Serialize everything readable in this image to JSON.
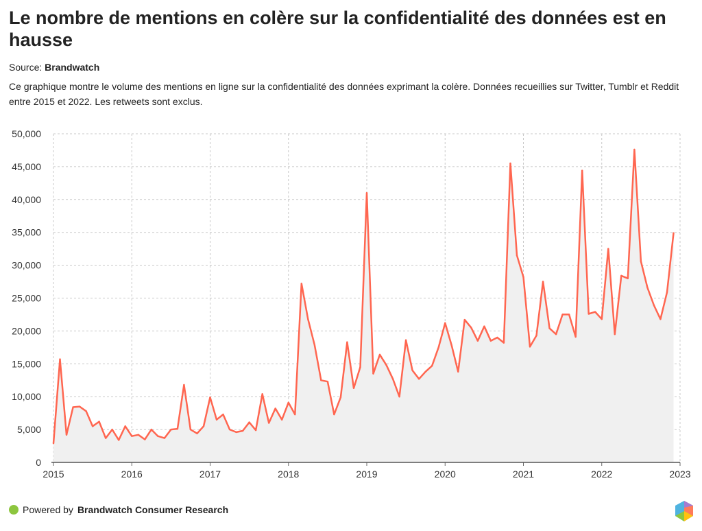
{
  "title": "Le nombre de mentions en colère sur la confidentialité des données est en hausse",
  "source_label": "Source:",
  "source_name": "Brandwatch",
  "description": "Ce graphique montre le volume des mentions en ligne sur la confidentialité des données exprimant la colère. Données recueillies sur Twitter, Tumblr et Reddit entre 2015 et 2022. Les retweets sont exclus.",
  "footer": {
    "powered_by": "Powered by",
    "brand": "Brandwatch Consumer Research"
  },
  "colors": {
    "line": "#ff6650",
    "area": "#f0f0f0",
    "grid": "#c8c8c8",
    "dot": "#8dc63f"
  },
  "chart_data": {
    "type": "area",
    "title": "Le nombre de mentions en colère sur la confidentialité des données est en hausse",
    "xlabel": "",
    "ylabel": "",
    "ylim": [
      0,
      50000
    ],
    "xlim": [
      2015,
      2023
    ],
    "grid": true,
    "y_ticks": [
      "0",
      "5,000",
      "10,000",
      "15,000",
      "20,000",
      "25,000",
      "30,000",
      "35,000",
      "40,000",
      "45,000",
      "50,000"
    ],
    "x_ticks": [
      "2015",
      "2016",
      "2017",
      "2018",
      "2019",
      "2020",
      "2021",
      "2022",
      "2023"
    ],
    "start": "2015-01",
    "interval": "month",
    "values": [
      2900,
      15700,
      4200,
      8400,
      8500,
      7800,
      5500,
      6200,
      3700,
      5000,
      3400,
      5500,
      4000,
      4200,
      3500,
      5000,
      4000,
      3700,
      5000,
      5100,
      11800,
      5000,
      4400,
      5500,
      9900,
      6500,
      7300,
      5000,
      4600,
      4800,
      6100,
      4900,
      10400,
      6000,
      8200,
      6500,
      9100,
      7300,
      27200,
      21800,
      17900,
      12500,
      12300,
      7300,
      9900,
      18300,
      11300,
      14500,
      41000,
      13500,
      16400,
      14800,
      12700,
      10000,
      18600,
      14000,
      12700,
      13800,
      14700,
      17500,
      21200,
      17800,
      13800,
      21700,
      20500,
      18500,
      20700,
      18500,
      19000,
      18200,
      45500,
      31500,
      28200,
      17600,
      19300,
      27500,
      20400,
      19500,
      22500,
      22500,
      19100,
      44400,
      22600,
      22900,
      21800,
      32500,
      19500,
      28400,
      28000,
      47600,
      30600,
      26600,
      23900,
      21800,
      25900,
      34900
    ]
  }
}
